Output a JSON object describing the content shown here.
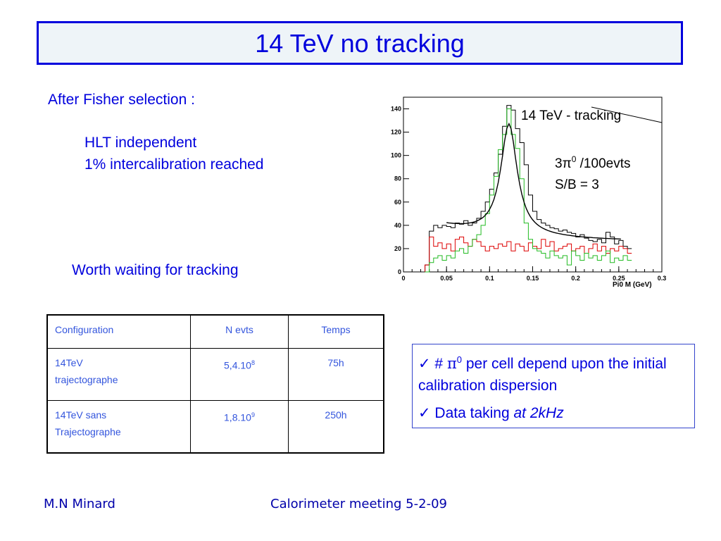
{
  "slide": {
    "title": "14 TeV no tracking",
    "intro": "After Fisher selection :",
    "line_hlt": "HLT  independent",
    "line_calib": "1% intercalibration reached",
    "worth": "Worth waiting for tracking"
  },
  "table": {
    "headers": [
      "Configuration",
      "N evts",
      "Temps"
    ],
    "rows": [
      {
        "config_line1": "14TeV",
        "config_line2": "trajectographe",
        "nevts_base": "5,4.10",
        "nevts_exp": "8",
        "temps": "75h"
      },
      {
        "config_line1": "14TeV sans",
        "config_line2": "Trajectographe",
        "nevts_base": "1,8.10",
        "nevts_exp": "9",
        "temps": "250h"
      }
    ]
  },
  "notes": {
    "item1_prefix": "✓ # ",
    "item1_symbol": "π",
    "item1_exp": "0",
    "item1_text": " per cell depend upon the initial calibration dispersion",
    "item2_prefix": "✓ Data taking ",
    "item2_italic": "at 2kHz"
  },
  "footer": {
    "author": "M.N Minard",
    "meeting": "Calorimeter meeting 5-2-09"
  },
  "chart_data": {
    "type": "line",
    "xlabel": "Pi0 M (GeV)",
    "xlim": [
      0,
      0.3
    ],
    "ylim": [
      0,
      150
    ],
    "x_ticks": [
      0,
      0.05,
      0.1,
      0.15,
      0.2,
      0.25,
      0.3
    ],
    "x_tick_labels": [
      "0",
      "0.05",
      "0.1",
      "0.15",
      "0.2",
      "0.25",
      "0.3"
    ],
    "y_ticks": [
      0,
      20,
      40,
      60,
      80,
      100,
      120,
      140
    ],
    "y_tick_labels": [
      "0",
      "20",
      "40",
      "60",
      "80",
      "100",
      "120",
      "140"
    ],
    "annotations": {
      "label": "14 TeV - tracking",
      "rate_base": "3",
      "rate_symbol": "π",
      "rate_exp": "0",
      "rate_tail": " /100evts",
      "sb": "S/B = 3"
    },
    "bin_edges_start": 0.025,
    "bin_width": 0.005,
    "series": [
      {
        "color": "#000000",
        "values": [
          6,
          35,
          40,
          38,
          40,
          39,
          38,
          42,
          41,
          44,
          40,
          42,
          46,
          52,
          60,
          71,
          85,
          101,
          125,
          143,
          139,
          123,
          111,
          92,
          66,
          52,
          45,
          42,
          40,
          38,
          37,
          35,
          36,
          34,
          33,
          30,
          32,
          29,
          27,
          26,
          28,
          25,
          34,
          30,
          24,
          27,
          22,
          20
        ]
      },
      {
        "color": "#dd0000",
        "values": [
          6,
          30,
          22,
          25,
          20,
          24,
          18,
          28,
          30,
          25,
          22,
          28,
          26,
          22,
          18,
          22,
          20,
          24,
          22,
          26,
          18,
          24,
          22,
          18,
          25,
          22,
          20,
          28,
          22,
          26,
          18,
          20,
          22,
          24,
          18,
          20,
          22,
          16,
          20,
          24,
          18,
          22,
          16,
          20,
          18,
          22,
          20,
          16
        ]
      },
      {
        "color": "#22bb22",
        "values": [
          0,
          8,
          12,
          14,
          10,
          14,
          12,
          18,
          20,
          16,
          22,
          28,
          32,
          40,
          50,
          66,
          82,
          105,
          118,
          140,
          118,
          106,
          80,
          42,
          28,
          20,
          18,
          16,
          12,
          18,
          14,
          12,
          14,
          6,
          18,
          14,
          10,
          16,
          12,
          14,
          10,
          14,
          18,
          8,
          12,
          10,
          14,
          10
        ]
      },
      {
        "color": "#000000",
        "values": [],
        "fit": true
      }
    ]
  }
}
